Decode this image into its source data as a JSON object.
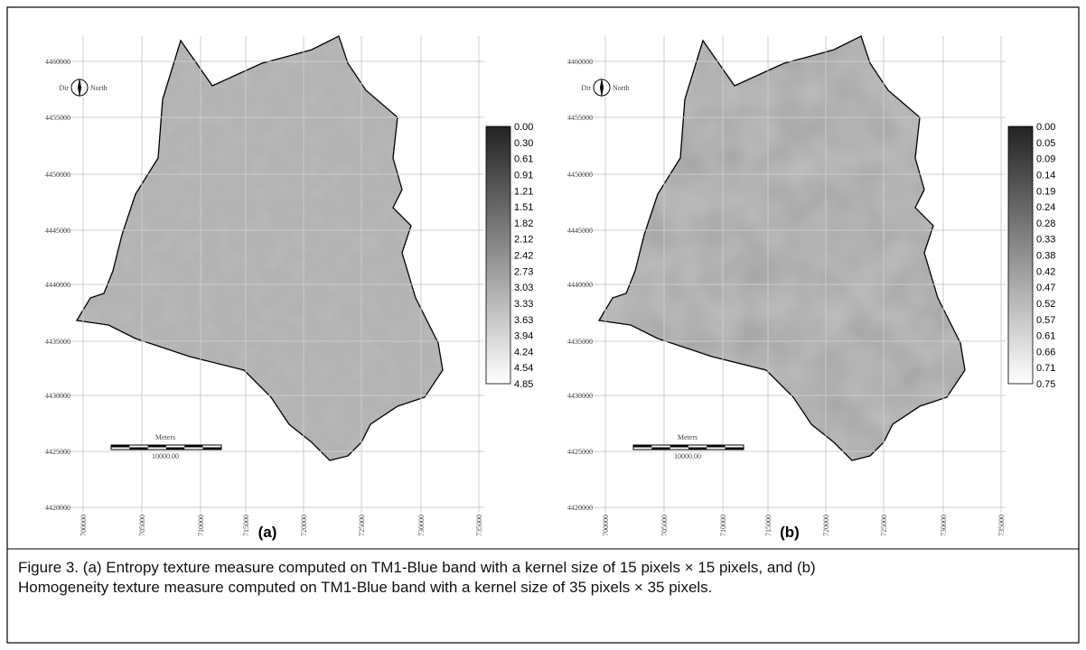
{
  "figure": {
    "panels": [
      {
        "label": "(a)",
        "dir": "Dir",
        "north": "North",
        "scale_title": "Meters",
        "scale_value": "10000.00",
        "y_labels": [
          "4460000",
          "4455000",
          "4450000",
          "4445000",
          "4440000",
          "4435000",
          "4430000",
          "4425000",
          "4420000"
        ],
        "x_labels": [
          "700000",
          "705000",
          "710000",
          "715000",
          "720000",
          "725000",
          "730000",
          "735000"
        ],
        "legend": [
          "0.00",
          "0.30",
          "0.61",
          "0.91",
          "1.21",
          "1.51",
          "1.82",
          "2.12",
          "2.42",
          "2.73",
          "3.03",
          "3.33",
          "3.63",
          "3.94",
          "4.24",
          "4.54",
          "4.85"
        ]
      },
      {
        "label": "(b)",
        "dir": "Dir",
        "north": "North",
        "scale_title": "Meters",
        "scale_value": "10000.00",
        "y_labels": [
          "4460000",
          "4455000",
          "4450000",
          "4445000",
          "4440000",
          "4435000",
          "4430000",
          "4425000",
          "4420000"
        ],
        "x_labels": [
          "700000",
          "705000",
          "710000",
          "715000",
          "720000",
          "725000",
          "730000",
          "735000"
        ],
        "legend": [
          "0.00",
          "0.05",
          "0.09",
          "0.14",
          "0.19",
          "0.24",
          "0.28",
          "0.33",
          "0.38",
          "0.42",
          "0.47",
          "0.52",
          "0.57",
          "0.61",
          "0.66",
          "0.71",
          "0.75"
        ]
      }
    ],
    "caption": "Figure 3. (a) Entropy texture measure computed on TM1-Blue band with a kernel size of 15 pixels × 15 pixels, and (b) Homogeneity texture measure computed on TM1-Blue band with a kernel size of 35 pixels × 35 pixels."
  }
}
